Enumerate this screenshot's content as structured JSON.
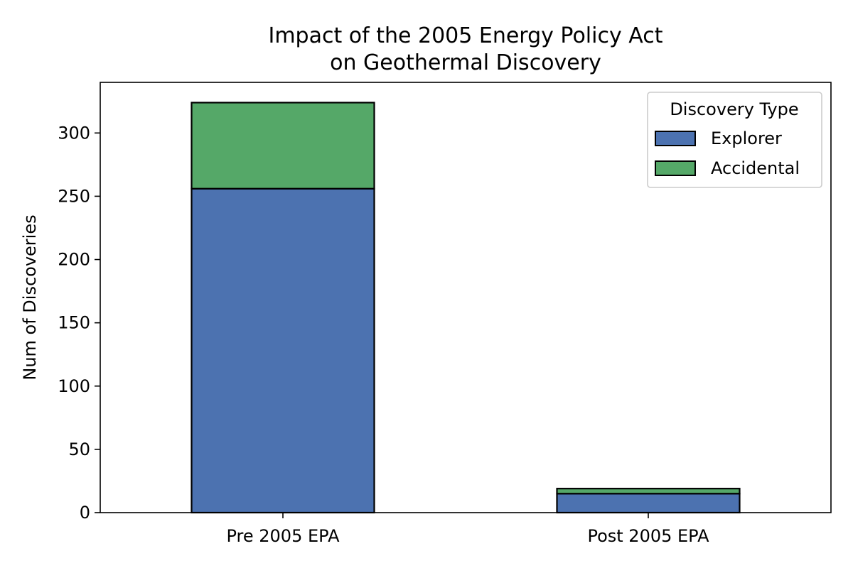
{
  "chart_data": {
    "type": "bar",
    "stacked": true,
    "title_lines": [
      "Impact of the 2005 Energy Policy Act",
      "on Geothermal Discovery"
    ],
    "xlabel": "",
    "ylabel": "Num of Discoveries",
    "categories": [
      "Pre 2005 EPA",
      "Post 2005 EPA"
    ],
    "series": [
      {
        "name": "Explorer",
        "values": [
          256,
          15
        ],
        "color": "#4c72b0"
      },
      {
        "name": "Accidental",
        "values": [
          68,
          4
        ],
        "color": "#55a868"
      }
    ],
    "ylim": [
      0,
      340
    ],
    "yticks": [
      0,
      50,
      100,
      150,
      200,
      250,
      300
    ],
    "grid": false,
    "legend": {
      "title": "Discovery Type",
      "placement": "upper-right"
    }
  }
}
